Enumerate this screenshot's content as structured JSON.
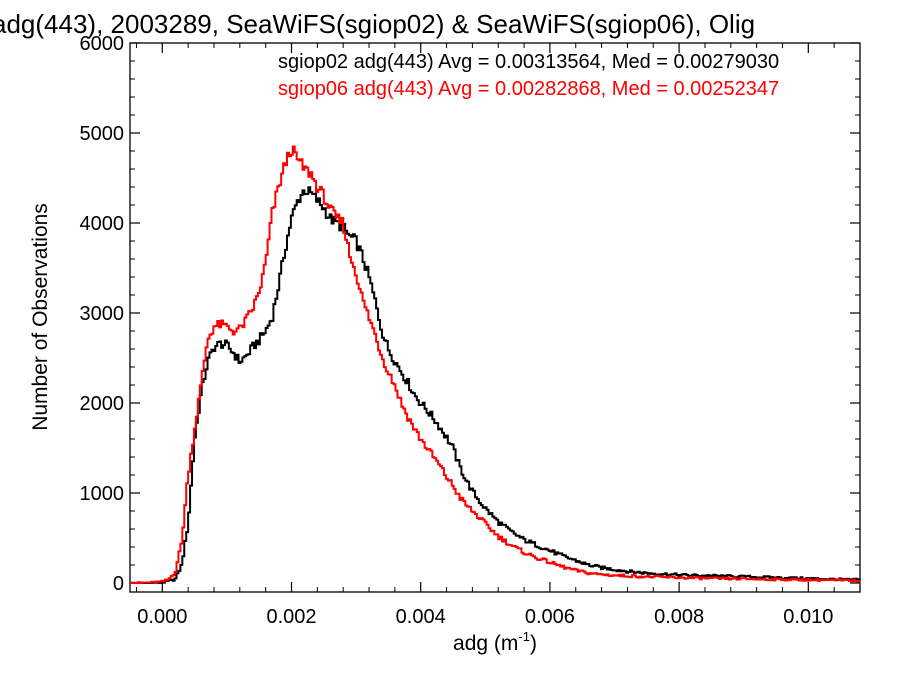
{
  "chart_data": {
    "type": "line",
    "title": "adg(443), 2003289, SeaWiFS(sgiop02) & SeaWiFS(sgiop06), Olig",
    "xlabel": "adg (m",
    "xlabel_sup": "-1",
    "xlabel_suffix": ")",
    "ylabel": "Number of Observations",
    "xlim": [
      -0.0005,
      0.0108
    ],
    "ylim": [
      -100,
      6000
    ],
    "x_ticks": [
      0.0,
      0.002,
      0.004,
      0.006,
      0.008,
      0.01
    ],
    "x_tick_labels": [
      "0.000",
      "0.002",
      "0.004",
      "0.006",
      "0.008",
      "0.010"
    ],
    "y_ticks": [
      0,
      1000,
      2000,
      3000,
      4000,
      5000,
      6000
    ],
    "y_tick_labels": [
      "0",
      "1000",
      "2000",
      "3000",
      "4000",
      "5000",
      "6000"
    ],
    "grid": false,
    "legend_position": "top-right",
    "series": [
      {
        "name": "sgiop02 adg(443) Avg = 0.00313564, Med = 0.00279030",
        "color": "#000000",
        "points": [
          [
            -0.0005,
            0
          ],
          [
            -0.0002,
            0
          ],
          [
            0.0,
            5
          ],
          [
            0.0002,
            40
          ],
          [
            0.0003,
            200
          ],
          [
            0.0004,
            650
          ],
          [
            0.0005,
            1600
          ],
          [
            0.0006,
            2100
          ],
          [
            0.0007,
            2450
          ],
          [
            0.0008,
            2620
          ],
          [
            0.0009,
            2660
          ],
          [
            0.001,
            2640
          ],
          [
            0.0011,
            2560
          ],
          [
            0.0012,
            2460
          ],
          [
            0.0013,
            2520
          ],
          [
            0.0014,
            2620
          ],
          [
            0.0015,
            2700
          ],
          [
            0.0016,
            2800
          ],
          [
            0.0017,
            2950
          ],
          [
            0.0018,
            3300
          ],
          [
            0.0019,
            3700
          ],
          [
            0.002,
            4050
          ],
          [
            0.0021,
            4250
          ],
          [
            0.0022,
            4370
          ],
          [
            0.0023,
            4330
          ],
          [
            0.0024,
            4250
          ],
          [
            0.0025,
            4170
          ],
          [
            0.0026,
            4050
          ],
          [
            0.0027,
            4000
          ],
          [
            0.0028,
            3950
          ],
          [
            0.0029,
            3850
          ],
          [
            0.003,
            3800
          ],
          [
            0.0031,
            3620
          ],
          [
            0.0032,
            3400
          ],
          [
            0.0033,
            3120
          ],
          [
            0.0034,
            2800
          ],
          [
            0.0035,
            2600
          ],
          [
            0.0036,
            2470
          ],
          [
            0.0037,
            2350
          ],
          [
            0.0038,
            2230
          ],
          [
            0.0039,
            2100
          ],
          [
            0.004,
            2000
          ],
          [
            0.0041,
            1920
          ],
          [
            0.0042,
            1830
          ],
          [
            0.0043,
            1730
          ],
          [
            0.0044,
            1620
          ],
          [
            0.0045,
            1500
          ],
          [
            0.0046,
            1300
          ],
          [
            0.0047,
            1150
          ],
          [
            0.0048,
            1020
          ],
          [
            0.0049,
            920
          ],
          [
            0.005,
            830
          ],
          [
            0.0052,
            680
          ],
          [
            0.0054,
            570
          ],
          [
            0.0056,
            480
          ],
          [
            0.0058,
            420
          ],
          [
            0.006,
            360
          ],
          [
            0.0062,
            300
          ],
          [
            0.0064,
            250
          ],
          [
            0.0066,
            200
          ],
          [
            0.0068,
            170
          ],
          [
            0.007,
            150
          ],
          [
            0.0072,
            130
          ],
          [
            0.0075,
            110
          ],
          [
            0.008,
            90
          ],
          [
            0.0085,
            80
          ],
          [
            0.009,
            70
          ],
          [
            0.0095,
            60
          ],
          [
            0.01,
            50
          ],
          [
            0.0105,
            40
          ],
          [
            0.0108,
            35
          ]
        ]
      },
      {
        "name": "sgiop06 adg(443) Avg = 0.00282868, Med = 0.00252347",
        "color": "#ff0000",
        "points": [
          [
            -0.0005,
            0
          ],
          [
            -0.0002,
            5
          ],
          [
            0.0,
            15
          ],
          [
            0.0001,
            40
          ],
          [
            0.0002,
            120
          ],
          [
            0.0003,
            450
          ],
          [
            0.0004,
            1200
          ],
          [
            0.0005,
            1700
          ],
          [
            0.0006,
            2200
          ],
          [
            0.0007,
            2700
          ],
          [
            0.0008,
            2850
          ],
          [
            0.0009,
            2870
          ],
          [
            0.001,
            2850
          ],
          [
            0.0011,
            2800
          ],
          [
            0.0012,
            2820
          ],
          [
            0.0013,
            2920
          ],
          [
            0.0014,
            3050
          ],
          [
            0.0015,
            3230
          ],
          [
            0.0016,
            3550
          ],
          [
            0.0017,
            4100
          ],
          [
            0.0018,
            4400
          ],
          [
            0.0019,
            4650
          ],
          [
            0.002,
            4830
          ],
          [
            0.0021,
            4700
          ],
          [
            0.0022,
            4600
          ],
          [
            0.0023,
            4550
          ],
          [
            0.0024,
            4400
          ],
          [
            0.0025,
            4300
          ],
          [
            0.0026,
            4150
          ],
          [
            0.0027,
            4050
          ],
          [
            0.0028,
            4000
          ],
          [
            0.0029,
            3650
          ],
          [
            0.003,
            3450
          ],
          [
            0.0031,
            3150
          ],
          [
            0.0032,
            2950
          ],
          [
            0.0033,
            2750
          ],
          [
            0.0034,
            2520
          ],
          [
            0.0035,
            2350
          ],
          [
            0.0036,
            2200
          ],
          [
            0.0037,
            2000
          ],
          [
            0.0038,
            1850
          ],
          [
            0.0039,
            1720
          ],
          [
            0.004,
            1600
          ],
          [
            0.0041,
            1500
          ],
          [
            0.0042,
            1400
          ],
          [
            0.0043,
            1300
          ],
          [
            0.0044,
            1180
          ],
          [
            0.0045,
            1080
          ],
          [
            0.0046,
            960
          ],
          [
            0.0047,
            870
          ],
          [
            0.0048,
            800
          ],
          [
            0.0049,
            730
          ],
          [
            0.005,
            660
          ],
          [
            0.0052,
            520
          ],
          [
            0.0054,
            420
          ],
          [
            0.0056,
            340
          ],
          [
            0.0058,
            280
          ],
          [
            0.006,
            230
          ],
          [
            0.0062,
            180
          ],
          [
            0.0064,
            140
          ],
          [
            0.0066,
            110
          ],
          [
            0.0068,
            95
          ],
          [
            0.007,
            85
          ],
          [
            0.0075,
            70
          ],
          [
            0.008,
            60
          ],
          [
            0.0085,
            50
          ],
          [
            0.009,
            45
          ],
          [
            0.0095,
            40
          ],
          [
            0.01,
            35
          ],
          [
            0.0105,
            30
          ],
          [
            0.0108,
            25
          ]
        ]
      }
    ]
  }
}
